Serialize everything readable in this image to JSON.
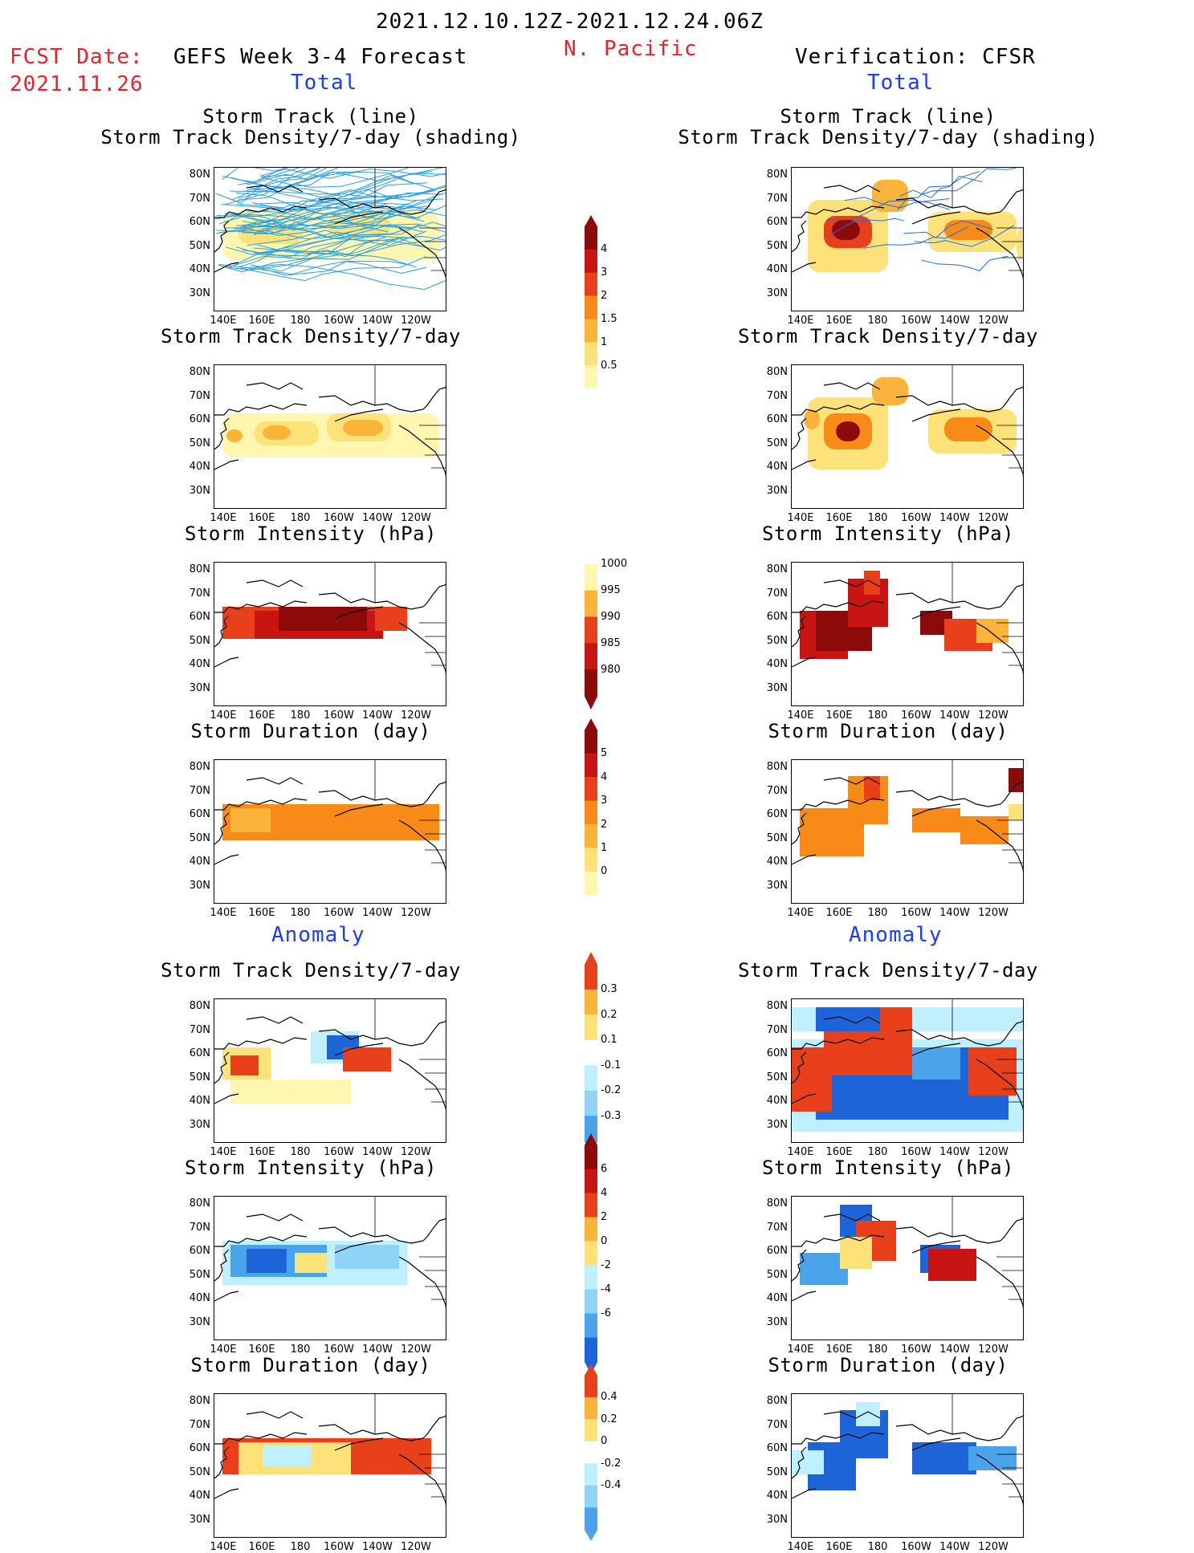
{
  "header": {
    "date_range": "2021.12.10.12Z-2021.12.24.06Z",
    "region": "N. Pacific",
    "fcst_label": "FCST Date:",
    "fcst_date": "2021.11.26",
    "left_title": "GEFS Week 3-4 Forecast",
    "right_title": "Verification: CFSR",
    "left_sub": "Total",
    "right_sub": "Total"
  },
  "section_labels": {
    "anomaly_left": "Anomaly",
    "anomaly_right": "Anomaly"
  },
  "axes": {
    "y": [
      "80N",
      "70N",
      "60N",
      "50N",
      "40N",
      "30N"
    ],
    "x": [
      "140E",
      "160E",
      "180",
      "160W",
      "140W",
      "120W"
    ]
  },
  "panels": {
    "r1_l_a": "Storm Track (line)",
    "r1_l_b": "Storm Track Density/7-day (shading)",
    "r1_r_a": "Storm Track (line)",
    "r1_r_b": "Storm Track Density/7-day (shading)",
    "r2_l": "Storm Track Density/7-day",
    "r2_r": "Storm Track Density/7-day",
    "r3_l": "Storm Intensity (hPa)",
    "r3_r": "Storm Intensity (hPa)",
    "r4_l": "Storm Duration (day)",
    "r4_r": "Storm Duration (day)",
    "r5_l": "Storm Track Density/7-day",
    "r5_r": "Storm Track Density/7-day",
    "r6_l": "Storm Intensity (hPa)",
    "r6_r": "Storm Intensity (hPa)",
    "r7_l": "Storm Duration (day)",
    "r7_r": "Storm Duration (day)"
  },
  "colorbars": {
    "density": [
      "4",
      "3",
      "2",
      "1.5",
      "1",
      "0.5"
    ],
    "intensity": [
      "1000",
      "995",
      "990",
      "985",
      "980"
    ],
    "duration": [
      "5",
      "4",
      "3",
      "2",
      "1",
      "0"
    ],
    "density_anom": [
      "0.3",
      "0.2",
      "0.1",
      "-0.1",
      "-0.2",
      "-0.3"
    ],
    "intensity_anom": [
      "6",
      "4",
      "2",
      "0",
      "-2",
      "-4",
      "-6"
    ],
    "duration_anom": [
      "0.4",
      "0.2",
      "0",
      "-0.2",
      "-0.4"
    ]
  },
  "colors": {
    "title_red": "#e8242a",
    "title_blue": "#1a3cff",
    "warm": [
      "#fff7b0",
      "#fde27a",
      "#fbb43a",
      "#f88a18",
      "#e8401a",
      "#c81412",
      "#8c0a0a"
    ],
    "cool": [
      "#bff0ff",
      "#8fd4f4",
      "#4aa4ea",
      "#1c64d8"
    ]
  }
}
